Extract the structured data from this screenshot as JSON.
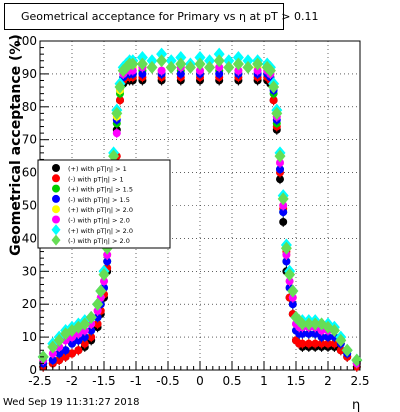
{
  "chart_data": {
    "type": "scatter",
    "title": "Geometrical acceptance for Primary vs   η at pT > 0.11",
    "xlabel": "η",
    "ylabel": "Geometrical acceptance (%)",
    "xlim": [
      -2.5,
      2.5
    ],
    "ylim": [
      0,
      100
    ],
    "x_ticks": [
      "-2.5",
      "-2",
      "-1.5",
      "-1",
      "-0.5",
      "0",
      "0.5",
      "1",
      "1.5",
      "2",
      "2.5"
    ],
    "x_tick_values": [
      -2.5,
      -2,
      -1.5,
      -1,
      -0.5,
      0,
      0.5,
      1,
      1.5,
      2,
      2.5
    ],
    "y_ticks": [
      "0",
      "10",
      "20",
      "30",
      "40",
      "50",
      "60",
      "70",
      "80",
      "90",
      "100"
    ],
    "y_tick_values": [
      0,
      10,
      20,
      30,
      40,
      50,
      60,
      70,
      80,
      90,
      100
    ],
    "grid": true,
    "legend_position": "left-middle",
    "footer": "Wed Sep 19 11:31:27 2018",
    "series": [
      {
        "name": "(+) with pT|η| > 1",
        "color": "#000000",
        "marker": "circle",
        "x": [
          -2.45,
          -2.3,
          -2.2,
          -2.1,
          -2,
          -1.9,
          -1.8,
          -1.7,
          -1.6,
          -1.55,
          -1.5,
          -1.45,
          -1.4,
          -1.35,
          -1.3,
          -1.25,
          -1.2,
          -1.15,
          -1.1,
          -1.05,
          -0.9,
          -0.6,
          -0.3,
          0,
          0.3,
          0.6,
          0.9,
          1.05,
          1.1,
          1.15,
          1.2,
          1.25,
          1.3,
          1.35,
          1.4,
          1.45,
          1.5,
          1.55,
          1.6,
          1.7,
          1.8,
          1.9,
          2,
          2.1,
          2.2,
          2.3,
          2.45
        ],
        "y": [
          1,
          2,
          3,
          4,
          5,
          6,
          7,
          9,
          13,
          17,
          22,
          30,
          45,
          58,
          73,
          82,
          87,
          88,
          88,
          88,
          88,
          88,
          88,
          88,
          88,
          88,
          88,
          88,
          87,
          82,
          73,
          58,
          45,
          30,
          22,
          17,
          9,
          8,
          7,
          7,
          7,
          7,
          7,
          7,
          6,
          4,
          1
        ]
      },
      {
        "name": "(-) with pT|η| > 1",
        "color": "#ff0000",
        "marker": "circle",
        "x": [
          -2.45,
          -2.3,
          -2.2,
          -2.1,
          -2,
          -1.9,
          -1.8,
          -1.7,
          -1.6,
          -1.55,
          -1.5,
          -1.45,
          -1.4,
          -1.35,
          -1.3,
          -1.25,
          -1.2,
          -1.15,
          -1.1,
          -1.05,
          -0.9,
          -0.6,
          -0.3,
          0,
          0.3,
          0.6,
          0.9,
          1.05,
          1.1,
          1.15,
          1.2,
          1.25,
          1.3,
          1.35,
          1.4,
          1.45,
          1.5,
          1.55,
          1.6,
          1.7,
          1.8,
          1.9,
          2,
          2.1,
          2.2,
          2.3,
          2.45
        ],
        "y": [
          1,
          2,
          3,
          4,
          5,
          6,
          8,
          10,
          14,
          18,
          23,
          31,
          47,
          60,
          65,
          82,
          88,
          89,
          89,
          89,
          89,
          89,
          89,
          89,
          89,
          89,
          89,
          89,
          88,
          82,
          74,
          60,
          49,
          36,
          22,
          17,
          9,
          8,
          8,
          8,
          8,
          8,
          8,
          8,
          6,
          4,
          1
        ]
      },
      {
        "name": "(+) with pT|η| > 1.5",
        "color": "#00cc00",
        "marker": "circle",
        "x": [
          -2.45,
          -2.3,
          -2.2,
          -2.1,
          -2,
          -1.9,
          -1.8,
          -1.7,
          -1.6,
          -1.55,
          -1.5,
          -1.45,
          -1.4,
          -1.35,
          -1.3,
          -1.25,
          -1.2,
          -1.15,
          -1.1,
          -1.05,
          -0.9,
          -0.6,
          -0.3,
          0,
          0.3,
          0.6,
          0.9,
          1.05,
          1.1,
          1.15,
          1.2,
          1.25,
          1.3,
          1.35,
          1.4,
          1.45,
          1.5,
          1.55,
          1.6,
          1.7,
          1.8,
          1.9,
          2,
          2.1,
          2.2,
          2.3,
          2.45
        ],
        "y": [
          2,
          3,
          5,
          6,
          8,
          9,
          10,
          12,
          16,
          20,
          25,
          33,
          48,
          61,
          75,
          84,
          89,
          90,
          90,
          90,
          91,
          90,
          91,
          90,
          91,
          90,
          90,
          90,
          89,
          84,
          75,
          61,
          48,
          33,
          25,
          20,
          12,
          11,
          11,
          11,
          11,
          10,
          10,
          10,
          8,
          5,
          2
        ]
      },
      {
        "name": "(-) with pT|η| > 1.5",
        "color": "#0000ff",
        "marker": "circle",
        "x": [
          -2.45,
          -2.3,
          -2.2,
          -2.1,
          -2,
          -1.9,
          -1.8,
          -1.7,
          -1.6,
          -1.55,
          -1.5,
          -1.45,
          -1.4,
          -1.35,
          -1.3,
          -1.25,
          -1.2,
          -1.15,
          -1.1,
          -1.05,
          -0.9,
          -0.6,
          -0.3,
          0,
          0.3,
          0.6,
          0.9,
          1.05,
          1.1,
          1.15,
          1.2,
          1.25,
          1.3,
          1.35,
          1.4,
          1.45,
          1.5,
          1.55,
          1.6,
          1.7,
          1.8,
          1.9,
          2,
          2.1,
          2.2,
          2.3,
          2.45
        ],
        "y": [
          2,
          3,
          5,
          6,
          8,
          9,
          10,
          12,
          16,
          20,
          25,
          33,
          48,
          61,
          76,
          85,
          89,
          90,
          90,
          90,
          90,
          90,
          90,
          90,
          90,
          90,
          90,
          90,
          89,
          85,
          76,
          61,
          48,
          33,
          25,
          20,
          12,
          11,
          11,
          11,
          11,
          10,
          10,
          10,
          8,
          5,
          2
        ]
      },
      {
        "name": "(+) with pT|η| > 2.0",
        "color": "#ffff00",
        "marker": "circle",
        "x": [
          -2.45,
          -2.3,
          -2.2,
          -2.1,
          -2,
          -1.9,
          -1.8,
          -1.7,
          -1.6,
          -1.55,
          -1.5,
          -1.45,
          -1.4,
          -1.35,
          -1.3,
          -1.25,
          -1.2,
          -1.15,
          -1.1,
          -1.05,
          -0.9,
          -0.6,
          -0.3,
          0,
          0.3,
          0.6,
          0.9,
          1.05,
          1.1,
          1.15,
          1.2,
          1.25,
          1.3,
          1.35,
          1.4,
          1.45,
          1.5,
          1.55,
          1.6,
          1.7,
          1.8,
          1.9,
          2,
          2.1,
          2.2,
          2.3,
          2.45
        ],
        "y": [
          3,
          5,
          7,
          9,
          10,
          11,
          12,
          14,
          18,
          22,
          27,
          35,
          50,
          63,
          77,
          85,
          90,
          91,
          91,
          92,
          92,
          91,
          92,
          91,
          92,
          91,
          92,
          91,
          90,
          86,
          77,
          63,
          50,
          35,
          27,
          22,
          14,
          13,
          13,
          13,
          13,
          12,
          12,
          12,
          9,
          6,
          2
        ]
      },
      {
        "name": "(-) with pT|η| > 2.0",
        "color": "#ff00ff",
        "marker": "circle",
        "x": [
          -2.45,
          -2.3,
          -2.2,
          -2.1,
          -2,
          -1.9,
          -1.8,
          -1.7,
          -1.6,
          -1.55,
          -1.5,
          -1.45,
          -1.4,
          -1.35,
          -1.3,
          -1.25,
          -1.2,
          -1.15,
          -1.1,
          -1.05,
          -0.9,
          -0.6,
          -0.3,
          0,
          0.3,
          0.6,
          0.9,
          1.05,
          1.1,
          1.15,
          1.2,
          1.25,
          1.3,
          1.35,
          1.4,
          1.45,
          1.5,
          1.55,
          1.6,
          1.7,
          1.8,
          1.9,
          2,
          2.1,
          2.2,
          2.3,
          2.45
        ],
        "y": [
          3,
          5,
          7,
          9,
          10,
          11,
          12,
          14,
          18,
          22,
          27,
          35,
          50,
          63,
          72,
          86,
          90,
          91,
          91,
          91,
          92,
          91,
          92,
          91,
          92,
          91,
          91,
          91,
          90,
          86,
          77,
          63,
          50,
          35,
          27,
          22,
          14,
          13,
          13,
          13,
          13,
          12,
          12,
          12,
          9,
          6,
          2
        ]
      },
      {
        "name": "(+) with pT|η| > 2.0",
        "color": "#00ffff",
        "marker": "diamond",
        "x": [
          -2.45,
          -2.3,
          -2.2,
          -2.1,
          -2,
          -1.9,
          -1.8,
          -1.7,
          -1.6,
          -1.55,
          -1.5,
          -1.45,
          -1.4,
          -1.35,
          -1.3,
          -1.25,
          -1.2,
          -1.15,
          -1.1,
          -1.05,
          -0.9,
          -0.75,
          -0.6,
          -0.45,
          -0.3,
          -0.15,
          0,
          0.15,
          0.3,
          0.45,
          0.6,
          0.75,
          0.9,
          1.05,
          1.1,
          1.15,
          1.2,
          1.25,
          1.3,
          1.35,
          1.4,
          1.45,
          1.5,
          1.55,
          1.6,
          1.7,
          1.8,
          1.9,
          2,
          2.1,
          2.2,
          2.3,
          2.45
        ],
        "y": [
          4,
          8,
          10,
          12,
          13,
          14,
          15,
          16,
          20,
          24,
          30,
          38,
          53,
          66,
          79,
          87,
          92,
          93,
          94,
          94,
          95,
          94,
          96,
          94,
          95,
          93,
          95,
          94,
          96,
          94,
          95,
          94,
          94,
          93,
          92,
          87,
          79,
          66,
          53,
          38,
          30,
          24,
          16,
          15,
          15,
          15,
          15,
          14,
          14,
          13,
          10,
          6,
          3
        ]
      },
      {
        "name": "(-) with pT|η| > 2.0",
        "color": "#66dd55",
        "marker": "diamond",
        "x": [
          -2.45,
          -2.3,
          -2.2,
          -2.1,
          -2,
          -1.9,
          -1.8,
          -1.7,
          -1.6,
          -1.55,
          -1.5,
          -1.45,
          -1.4,
          -1.35,
          -1.3,
          -1.25,
          -1.2,
          -1.15,
          -1.1,
          -1.05,
          -0.9,
          -0.75,
          -0.6,
          -0.45,
          -0.3,
          -0.15,
          0,
          0.15,
          0.3,
          0.45,
          0.6,
          0.75,
          0.9,
          1.05,
          1.1,
          1.15,
          1.2,
          1.25,
          1.3,
          1.35,
          1.4,
          1.45,
          1.5,
          1.55,
          1.6,
          1.7,
          1.8,
          1.9,
          2,
          2.1,
          2.2,
          2.3,
          2.45
        ],
        "y": [
          4,
          7,
          9,
          11,
          12,
          13,
          14,
          16,
          20,
          24,
          29,
          37,
          52,
          65,
          78,
          86,
          91,
          92,
          93,
          93,
          93,
          92,
          94,
          92,
          93,
          92,
          93,
          92,
          94,
          92,
          93,
          92,
          93,
          92,
          91,
          86,
          78,
          65,
          52,
          37,
          29,
          24,
          16,
          15,
          14,
          14,
          14,
          14,
          13,
          12,
          9,
          6,
          3
        ]
      }
    ]
  }
}
